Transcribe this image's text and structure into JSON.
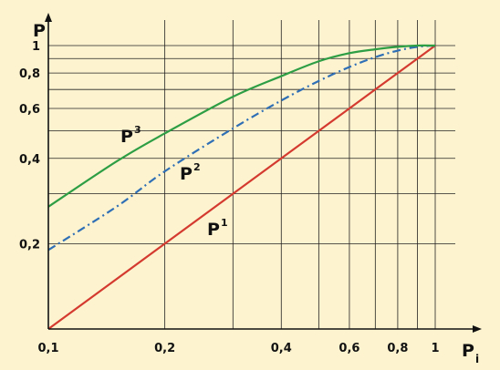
{
  "chart_data": {
    "type": "line",
    "xlabel": "P",
    "xlabel_sub": "i",
    "ylabel": "P",
    "x_scale": "log",
    "y_scale": "log",
    "xlim": [
      0.1,
      1
    ],
    "ylim": [
      0.1,
      1
    ],
    "grid": true,
    "x_ticks": [
      {
        "value": 0.1,
        "label": "0,1"
      },
      {
        "value": 0.2,
        "label": "0,2"
      },
      {
        "value": 0.4,
        "label": "0,4"
      },
      {
        "value": 0.6,
        "label": "0,6"
      },
      {
        "value": 0.8,
        "label": "0,8"
      },
      {
        "value": 1,
        "label": "1"
      }
    ],
    "y_ticks": [
      {
        "value": 0.2,
        "label": "0,2"
      },
      {
        "value": 0.4,
        "label": "0,4"
      },
      {
        "value": 0.6,
        "label": "0,6"
      },
      {
        "value": 0.8,
        "label": "0,8"
      },
      {
        "value": 1,
        "label": "1"
      }
    ],
    "x_grid": [
      0.1,
      0.2,
      0.3,
      0.4,
      0.5,
      0.6,
      0.7,
      0.8,
      0.9,
      1
    ],
    "y_grid": [
      0.2,
      0.3,
      0.4,
      0.5,
      0.6,
      0.7,
      0.8,
      0.9,
      1
    ],
    "series": [
      {
        "name": "P",
        "sup": "1",
        "color": "#d43a2f",
        "dash": "solid",
        "x": [
          0.1,
          0.2,
          0.3,
          0.4,
          0.5,
          0.6,
          0.7,
          0.8,
          0.9,
          1
        ],
        "y": [
          0.1,
          0.2,
          0.3,
          0.4,
          0.5,
          0.6,
          0.7,
          0.8,
          0.9,
          1
        ]
      },
      {
        "name": "P",
        "sup": "2",
        "color": "#2f6fb5",
        "dash": "dashdot",
        "x": [
          0.1,
          0.15,
          0.2,
          0.3,
          0.4,
          0.5,
          0.6,
          0.7,
          0.8,
          0.9,
          1
        ],
        "y": [
          0.19,
          0.27,
          0.36,
          0.51,
          0.64,
          0.75,
          0.84,
          0.91,
          0.96,
          0.99,
          1
        ]
      },
      {
        "name": "P",
        "sup": "3",
        "color": "#2e9e45",
        "dash": "solid",
        "x": [
          0.1,
          0.15,
          0.2,
          0.3,
          0.4,
          0.5,
          0.6,
          0.7,
          0.8,
          0.9,
          1
        ],
        "y": [
          0.27,
          0.39,
          0.49,
          0.66,
          0.78,
          0.88,
          0.94,
          0.97,
          0.99,
          1,
          1
        ]
      }
    ]
  }
}
